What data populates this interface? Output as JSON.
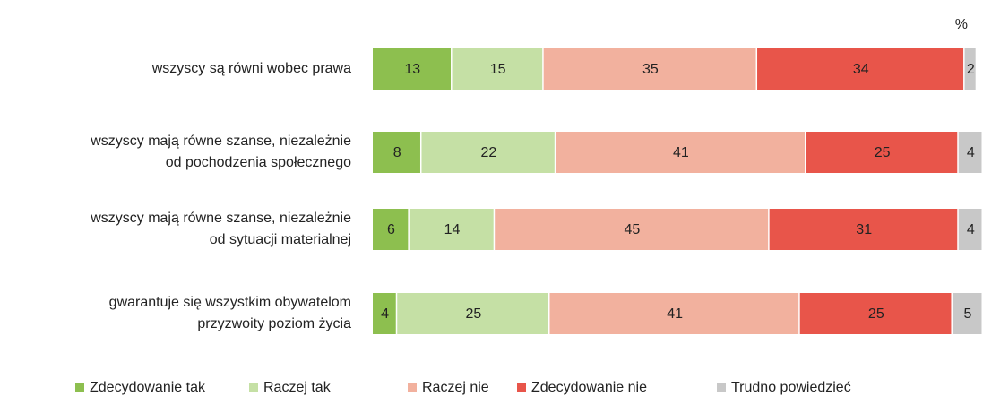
{
  "chart_data": {
    "type": "stacked-bar-horizontal",
    "unit": "%",
    "categories": [
      [
        "wszyscy są równi wobec prawa"
      ],
      [
        "wszyscy mają równe szanse, niezależnie",
        "od pochodzenia społecznego"
      ],
      [
        "wszyscy mają równe szanse, niezależnie",
        "od sytuacji materialnej"
      ],
      [
        "gwarantuje się wszystkim obywatelom",
        "przyzwoity poziom życia"
      ]
    ],
    "series": [
      {
        "name": "Zdecydowanie tak",
        "color": "#8dbf4f",
        "values": [
          13,
          8,
          6,
          4
        ]
      },
      {
        "name": "Raczej tak",
        "color": "#c5e0a5",
        "values": [
          15,
          22,
          14,
          25
        ]
      },
      {
        "name": "Raczej nie",
        "color": "#f2b19e",
        "values": [
          35,
          41,
          45,
          41
        ]
      },
      {
        "name": "Zdecydowanie nie",
        "color": "#e8554a",
        "values": [
          34,
          25,
          31,
          25
        ]
      },
      {
        "name": "Trudno powiedzieć",
        "color": "#c8c8c8",
        "values": [
          2,
          4,
          4,
          5
        ]
      }
    ],
    "xlim": [
      0,
      100
    ],
    "legend": "bottom"
  }
}
